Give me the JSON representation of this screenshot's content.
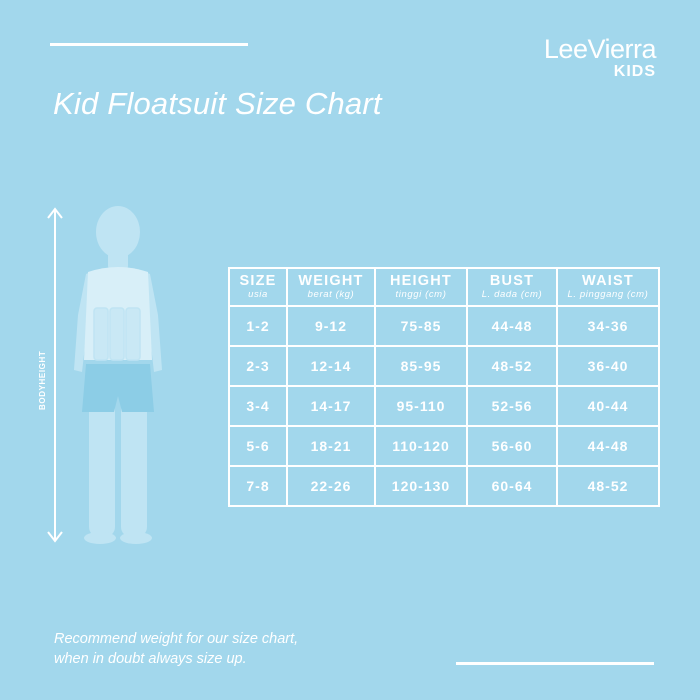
{
  "brand": {
    "name": "LeeVierra",
    "sub": "KIDS"
  },
  "title": "Kid Floatsuit Size Chart",
  "figure": {
    "label": "BODYHEIGHT"
  },
  "table": {
    "headers": [
      {
        "label": "SIZE",
        "sub": "usia"
      },
      {
        "label": "WEIGHT",
        "sub": "berat (kg)"
      },
      {
        "label": "HEIGHT",
        "sub": "tinggi (cm)"
      },
      {
        "label": "BUST",
        "sub": "L. dada (cm)"
      },
      {
        "label": "WAIST",
        "sub": "L. pinggang (cm)"
      }
    ],
    "rows": [
      [
        "1-2",
        "9-12",
        "75-85",
        "44-48",
        "34-36"
      ],
      [
        "2-3",
        "12-14",
        "85-95",
        "48-52",
        "36-40"
      ],
      [
        "3-4",
        "14-17",
        "95-110",
        "52-56",
        "40-44"
      ],
      [
        "5-6",
        "18-21",
        "110-120",
        "56-60",
        "44-48"
      ],
      [
        "7-8",
        "22-26",
        "120-130",
        "60-64",
        "48-52"
      ]
    ]
  },
  "footnote": {
    "line1": "Recommend weight for our size chart,",
    "line2": "when in doubt always size up."
  },
  "colors": {
    "background": "#a2d7ec",
    "foreground": "#ffffff",
    "figure_body": "#bfe4f3",
    "figure_vest": "#d8eff8",
    "figure_shorts": "#8ccde6"
  }
}
